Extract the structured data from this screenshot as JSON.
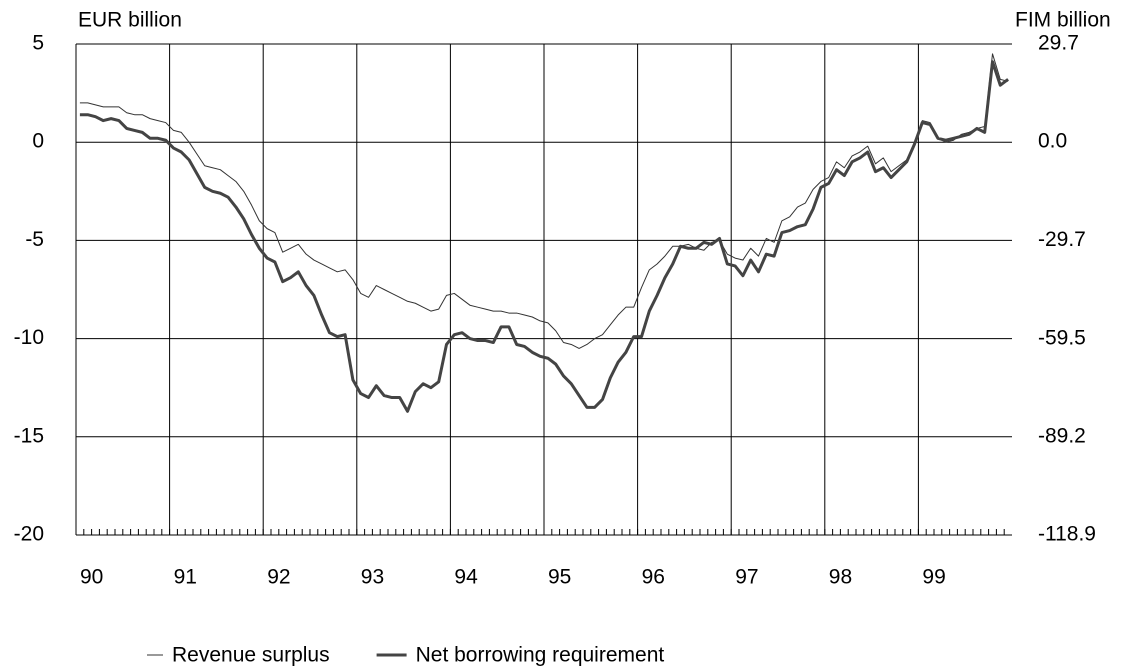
{
  "chart_data": {
    "type": "line",
    "y_axis_label": "EUR billion",
    "y2_axis_label": "FIM billion",
    "categories": [
      "90",
      null,
      null,
      null,
      null,
      null,
      null,
      null,
      null,
      null,
      null,
      null,
      "91",
      null,
      null,
      null,
      null,
      null,
      null,
      null,
      null,
      null,
      null,
      null,
      "92",
      null,
      null,
      null,
      null,
      null,
      null,
      null,
      null,
      null,
      null,
      null,
      "93",
      null,
      null,
      null,
      null,
      null,
      null,
      null,
      null,
      null,
      null,
      null,
      "94",
      null,
      null,
      null,
      null,
      null,
      null,
      null,
      null,
      null,
      null,
      null,
      "95",
      null,
      null,
      null,
      null,
      null,
      null,
      null,
      null,
      null,
      null,
      null,
      "96",
      null,
      null,
      null,
      null,
      null,
      null,
      null,
      null,
      null,
      null,
      null,
      "97",
      null,
      null,
      null,
      null,
      null,
      null,
      null,
      null,
      null,
      null,
      null,
      "98",
      null,
      null,
      null,
      null,
      null,
      null,
      null,
      null,
      null,
      null,
      null,
      "99",
      null,
      null,
      null,
      null,
      null,
      null,
      null,
      null,
      null,
      null,
      null
    ],
    "series": [
      {
        "name": "Revenue surplus",
        "color": "#333333",
        "width": 1,
        "values": [
          2.0,
          2.0,
          1.9,
          1.8,
          1.8,
          1.8,
          1.5,
          1.4,
          1.4,
          1.2,
          1.1,
          1.0,
          0.6,
          0.5,
          0.0,
          -0.6,
          -1.2,
          -1.3,
          -1.4,
          -1.7,
          -2.0,
          -2.5,
          -3.2,
          -4.0,
          -4.4,
          -4.6,
          -5.6,
          -5.4,
          -5.2,
          -5.7,
          -6.0,
          -6.2,
          -6.4,
          -6.6,
          -6.5,
          -7.0,
          -7.7,
          -7.9,
          -7.3,
          -7.5,
          -7.7,
          -7.9,
          -8.1,
          -8.2,
          -8.4,
          -8.6,
          -8.5,
          -7.8,
          -7.7,
          -8.0,
          -8.3,
          -8.4,
          -8.5,
          -8.6,
          -8.6,
          -8.7,
          -8.7,
          -8.8,
          -8.9,
          -9.1,
          -9.2,
          -9.6,
          -10.2,
          -10.3,
          -10.5,
          -10.3,
          -10.0,
          -9.8,
          -9.3,
          -8.8,
          -8.4,
          -8.4,
          -7.4,
          -6.5,
          -6.2,
          -5.8,
          -5.3,
          -5.3,
          -5.2,
          -5.4,
          -5.5,
          -5.1,
          -5.0,
          -5.7,
          -5.9,
          -6.0,
          -5.4,
          -5.8,
          -4.9,
          -5.1,
          -4.0,
          -3.8,
          -3.3,
          -3.1,
          -2.4,
          -2.0,
          -1.8,
          -1.0,
          -1.3,
          -0.7,
          -0.5,
          -0.2,
          -1.1,
          -0.8,
          -1.5,
          -1.2,
          -0.9,
          -0.1,
          1.1,
          1.0,
          0.2,
          0.0,
          0.1,
          0.4,
          0.5,
          0.7,
          0.8,
          4.5,
          3.2,
          3.1
        ]
      },
      {
        "name": "Net borrowing requirement",
        "color": "#444444",
        "width": 3,
        "values": [
          1.4,
          1.4,
          1.3,
          1.1,
          1.2,
          1.1,
          0.7,
          0.6,
          0.5,
          0.2,
          0.2,
          0.1,
          -0.3,
          -0.5,
          -0.9,
          -1.6,
          -2.3,
          -2.5,
          -2.6,
          -2.8,
          -3.3,
          -3.9,
          -4.7,
          -5.4,
          -5.9,
          -6.1,
          -7.1,
          -6.9,
          -6.6,
          -7.3,
          -7.8,
          -8.8,
          -9.7,
          -9.9,
          -9.8,
          -12.1,
          -12.8,
          -13.0,
          -12.4,
          -12.9,
          -13.0,
          -13.0,
          -13.7,
          -12.7,
          -12.3,
          -12.5,
          -12.2,
          -10.3,
          -9.8,
          -9.7,
          -10.0,
          -10.1,
          -10.1,
          -10.2,
          -9.4,
          -9.4,
          -10.3,
          -10.4,
          -10.7,
          -10.9,
          -11.0,
          -11.3,
          -11.9,
          -12.3,
          -12.9,
          -13.5,
          -13.5,
          -13.1,
          -12.0,
          -11.2,
          -10.7,
          -9.9,
          -9.9,
          -8.6,
          -7.8,
          -6.9,
          -6.2,
          -5.3,
          -5.4,
          -5.4,
          -5.1,
          -5.2,
          -4.9,
          -6.2,
          -6.3,
          -6.8,
          -6.0,
          -6.6,
          -5.7,
          -5.8,
          -4.6,
          -4.5,
          -4.3,
          -4.2,
          -3.4,
          -2.3,
          -2.1,
          -1.4,
          -1.7,
          -1.0,
          -0.8,
          -0.5,
          -1.5,
          -1.3,
          -1.8,
          -1.4,
          -1.0,
          -0.1,
          1.0,
          0.9,
          0.2,
          0.1,
          0.2,
          0.3,
          0.4,
          0.7,
          0.5,
          4.1,
          2.9,
          3.2
        ]
      }
    ],
    "ylim": [
      -20,
      5
    ],
    "yticks": [
      5,
      0,
      -5,
      -10,
      -15,
      -20
    ],
    "y2lim": [
      -118.9,
      29.7
    ],
    "y2ticks": [
      29.7,
      {
        "value": 0,
        "label": "0.0"
      },
      -29.7,
      -59.5,
      -89.2,
      -118.9
    ],
    "grid": true,
    "legend": "bottom"
  }
}
